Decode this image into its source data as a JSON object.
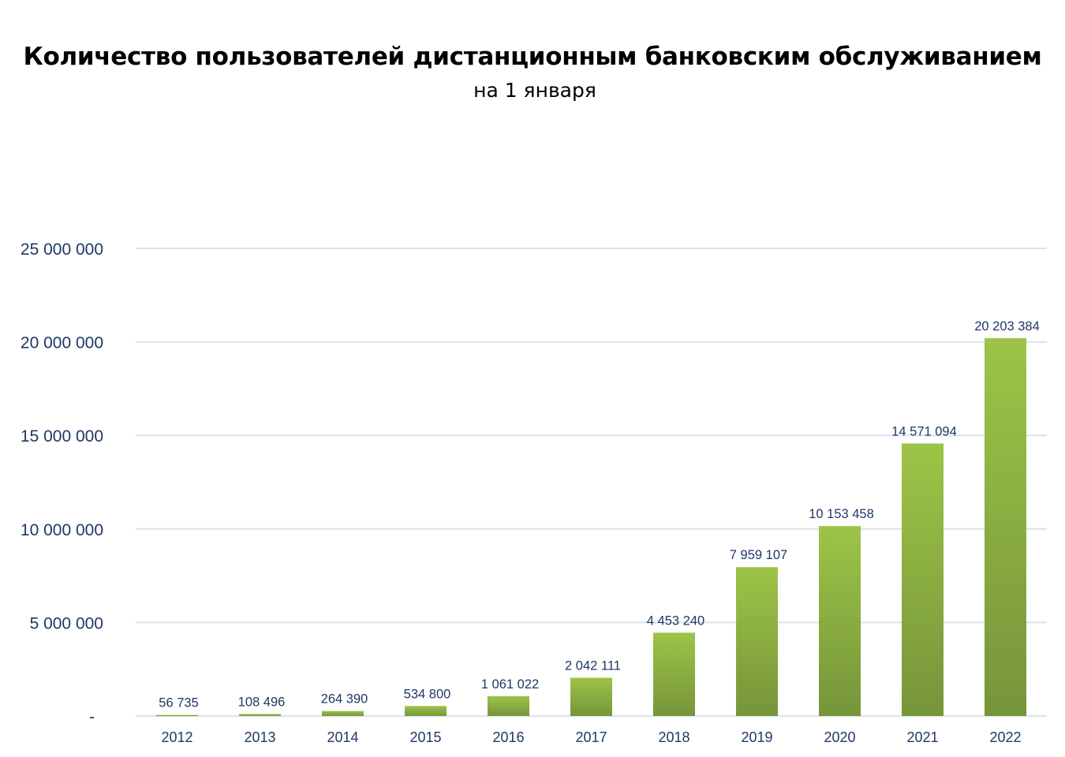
{
  "chart_data": {
    "type": "bar",
    "title": "Количество пользователей дистанционным банковским обслуживанием",
    "subtitle": "на 1 января",
    "xlabel": "",
    "ylabel": "",
    "categories": [
      "2012",
      "2013",
      "2014",
      "2015",
      "2016",
      "2017",
      "2018",
      "2019",
      "2020",
      "2021",
      "2022"
    ],
    "values": [
      56735,
      108496,
      264390,
      534800,
      1061022,
      2042111,
      4453240,
      7959107,
      10153458,
      14571094,
      20203384
    ],
    "data_labels": [
      "56 735",
      "108 496",
      "264 390",
      "534 800",
      "1 061 022",
      "2 042 111",
      "4 453 240",
      "7 959 107",
      "10 153 458",
      "14 571 094",
      "20 203 384"
    ],
    "ylim": [
      0,
      25000000
    ],
    "yticks": [
      0,
      5000000,
      10000000,
      15000000,
      20000000,
      25000000
    ],
    "ytick_labels": [
      "-",
      "5 000 000",
      "10 000 000",
      "15 000 000",
      "20 000 000",
      "25 000 000"
    ],
    "grid": true,
    "legend": "none",
    "colors": {
      "bar_top": "#9dc447",
      "bar_bottom": "#76953a",
      "text": "#1f3864",
      "grid": "#d9e2ee"
    }
  }
}
